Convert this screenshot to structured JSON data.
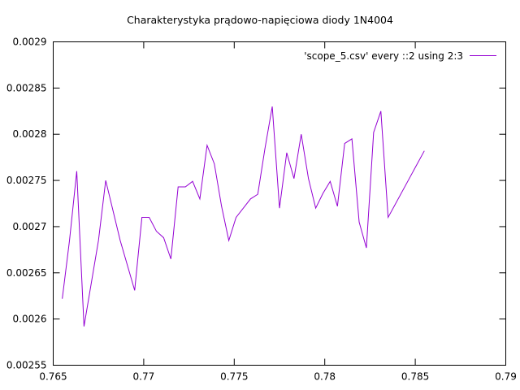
{
  "chart_data": {
    "type": "line",
    "title": "Charakterystyka prądowo-napięciowa diody 1N4004",
    "xlabel": "",
    "ylabel": "",
    "xlim": [
      0.765,
      0.79
    ],
    "ylim": [
      0.00255,
      0.0029
    ],
    "xticks": [
      "0.765",
      "0.77",
      "0.775",
      "0.78",
      "0.785",
      "0.79"
    ],
    "yticks": [
      "0.00255",
      "0.0026",
      "0.00265",
      "0.0027",
      "0.00275",
      "0.0028",
      "0.00285",
      "0.0029"
    ],
    "grid": false,
    "legend_position": "top-right",
    "series": [
      {
        "name": "'scope_5.csv' every ::2 using 2:3",
        "color": "#9400d3",
        "x": [
          0.7655,
          0.7659,
          0.7663,
          0.7667,
          0.7675,
          0.7679,
          0.7687,
          0.7695,
          0.7699,
          0.7703,
          0.7707,
          0.7711,
          0.7715,
          0.7719,
          0.7723,
          0.7727,
          0.7731,
          0.7735,
          0.7739,
          0.7743,
          0.7747,
          0.7751,
          0.7759,
          0.7763,
          0.7767,
          0.7771,
          0.7775,
          0.7779,
          0.7783,
          0.7787,
          0.7791,
          0.7795,
          0.7799,
          0.7803,
          0.7807,
          0.7811,
          0.7815,
          0.7819,
          0.7823,
          0.7827,
          0.7831,
          0.7835,
          0.7855
        ],
        "y": [
          0.002622,
          0.002685,
          0.00276,
          0.002592,
          0.002685,
          0.00275,
          0.002685,
          0.002631,
          0.00271,
          0.00271,
          0.002695,
          0.002688,
          0.002665,
          0.002743,
          0.002743,
          0.002749,
          0.00273,
          0.002788,
          0.002768,
          0.002722,
          0.002685,
          0.00271,
          0.00273,
          0.002735,
          0.002785,
          0.00283,
          0.00272,
          0.00278,
          0.002752,
          0.0028,
          0.002752,
          0.00272,
          0.002736,
          0.002749,
          0.002722,
          0.00279,
          0.002795,
          0.002705,
          0.002677,
          0.002802,
          0.002825,
          0.00271,
          0.002782
        ]
      }
    ]
  }
}
